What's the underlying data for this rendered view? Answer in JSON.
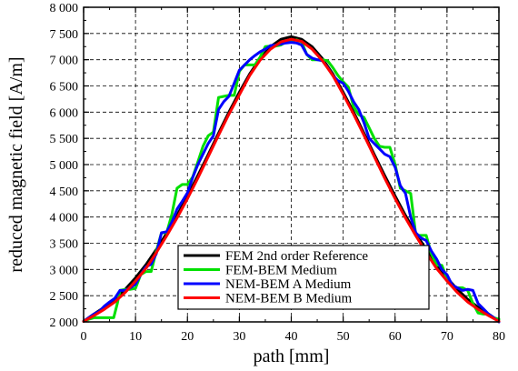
{
  "chart_data": {
    "type": "line",
    "xlabel": "path [mm]",
    "ylabel": "reduced magnetic field [A/m]",
    "xlim": [
      0,
      80
    ],
    "ylim": [
      2000,
      8000
    ],
    "x_ticks": [
      0,
      10,
      20,
      30,
      40,
      50,
      60,
      70,
      80
    ],
    "y_ticks": [
      2000,
      2500,
      3000,
      3500,
      4000,
      4500,
      5000,
      5500,
      6000,
      6500,
      7000,
      7500,
      8000
    ],
    "x_tick_labels": [
      "0",
      "10",
      "20",
      "30",
      "40",
      "50",
      "60",
      "70",
      "80"
    ],
    "y_tick_labels": [
      "2 000",
      "2 500",
      "3 000",
      "3 500",
      "4 000",
      "4 500",
      "5 000",
      "5 500",
      "6 000",
      "6 500",
      "7 000",
      "7 500",
      "8 000"
    ],
    "grid": true,
    "legend_position": "bottom-center",
    "series": [
      {
        "name": "FEM 2nd order Reference",
        "color": "#000000",
        "x": [
          0,
          2,
          4,
          6,
          8,
          10,
          12,
          14,
          16,
          18,
          20,
          22,
          24,
          26,
          28,
          30,
          32,
          34,
          36,
          38,
          40,
          42,
          44,
          46,
          48,
          50,
          52,
          54,
          56,
          58,
          60,
          62,
          64,
          66,
          68,
          70,
          72,
          74,
          76,
          78,
          80
        ],
        "y": [
          2010,
          2150,
          2280,
          2430,
          2620,
          2840,
          3090,
          3380,
          3690,
          4030,
          4400,
          4790,
          5190,
          5600,
          6000,
          6380,
          6730,
          7020,
          7250,
          7390,
          7440,
          7390,
          7250,
          7020,
          6730,
          6380,
          6000,
          5600,
          5190,
          4790,
          4400,
          4030,
          3690,
          3380,
          3090,
          2840,
          2620,
          2430,
          2280,
          2150,
          2010
        ]
      },
      {
        "name": "FEM-BEM Medium",
        "color": "#00e000",
        "x": [
          0,
          1,
          2,
          3,
          4,
          5,
          5.8,
          6.5,
          7,
          8,
          9,
          10,
          11,
          12,
          13,
          14,
          15,
          16,
          17,
          18,
          19,
          20,
          21,
          22,
          23,
          24,
          25,
          26,
          27,
          28,
          29,
          30,
          31,
          32,
          33,
          34,
          35,
          36,
          37,
          38,
          39,
          40,
          41,
          42,
          43,
          44,
          45,
          46,
          47,
          48,
          49,
          50,
          51,
          52,
          53,
          54,
          55,
          56,
          57,
          58,
          59,
          60,
          61,
          62,
          63,
          64,
          65,
          66,
          67,
          68,
          69,
          70,
          71,
          72,
          73,
          74,
          75,
          76,
          77,
          78,
          79,
          80
        ],
        "y": [
          2010,
          2050,
          2080,
          2080,
          2080,
          2080,
          2080,
          2350,
          2600,
          2620,
          2620,
          2640,
          2900,
          2960,
          2960,
          3350,
          3700,
          3700,
          4050,
          4550,
          4620,
          4620,
          4760,
          5050,
          5350,
          5550,
          5620,
          6280,
          6300,
          6320,
          6320,
          6780,
          6900,
          6900,
          6900,
          7050,
          7250,
          7260,
          7260,
          7280,
          7340,
          7360,
          7380,
          7340,
          7100,
          7000,
          7000,
          7000,
          6980,
          6850,
          6700,
          6580,
          6480,
          6100,
          5950,
          5900,
          5700,
          5500,
          5350,
          5330,
          5330,
          5000,
          4550,
          4500,
          4450,
          3650,
          3650,
          3650,
          3300,
          3080,
          3080,
          2820,
          2680,
          2650,
          2650,
          2600,
          2350,
          2170,
          2150,
          2150,
          2080,
          2050
        ]
      },
      {
        "name": "NEM-BEM A Medium",
        "color": "#0000ff",
        "x": [
          0,
          1,
          2,
          3,
          4,
          5,
          6,
          7,
          8,
          9,
          10,
          11,
          12,
          13,
          14,
          15,
          16,
          17,
          18,
          19,
          20,
          21,
          22,
          23,
          24,
          25,
          26,
          27,
          28,
          29,
          30,
          31,
          32,
          33,
          34,
          35,
          36,
          37,
          38,
          39,
          40,
          41,
          42,
          43,
          44,
          45,
          46,
          47,
          48,
          49,
          50,
          51,
          52,
          53,
          54,
          55,
          56,
          57,
          58,
          59,
          60,
          61,
          62,
          63,
          64,
          65,
          66,
          67,
          68,
          69,
          70,
          71,
          72,
          73,
          74,
          75,
          76,
          77,
          78,
          79,
          80
        ],
        "y": [
          2010,
          2080,
          2150,
          2200,
          2300,
          2380,
          2450,
          2600,
          2600,
          2650,
          2720,
          2900,
          3050,
          3100,
          3300,
          3700,
          3720,
          3900,
          4150,
          4300,
          4460,
          4750,
          5000,
          5200,
          5400,
          5550,
          6050,
          6200,
          6300,
          6550,
          6800,
          6900,
          7000,
          7080,
          7150,
          7200,
          7270,
          7280,
          7300,
          7320,
          7330,
          7320,
          7280,
          7100,
          7030,
          7000,
          6980,
          6850,
          6700,
          6600,
          6550,
          6400,
          6200,
          6050,
          5800,
          5500,
          5400,
          5300,
          5200,
          5150,
          4950,
          4600,
          4450,
          4000,
          3700,
          3600,
          3550,
          3350,
          3200,
          3000,
          2900,
          2700,
          2650,
          2600,
          2620,
          2600,
          2350,
          2250,
          2150,
          2080,
          2000
        ]
      },
      {
        "name": "NEM-BEM B Medium",
        "color": "#ff0000",
        "x": [
          0,
          2,
          4,
          6,
          8,
          10,
          12,
          14,
          16,
          18,
          20,
          22,
          24,
          26,
          28,
          30,
          32,
          34,
          36,
          38,
          40,
          42,
          44,
          46,
          48,
          50,
          52,
          54,
          56,
          58,
          60,
          62,
          64,
          66,
          68,
          70,
          72,
          74,
          76,
          78,
          80
        ],
        "y": [
          2010,
          2120,
          2240,
          2380,
          2560,
          2780,
          3020,
          3320,
          3640,
          3980,
          4350,
          4740,
          5150,
          5560,
          5960,
          6330,
          6700,
          6990,
          7200,
          7340,
          7390,
          7350,
          7200,
          6980,
          6700,
          6340,
          5960,
          5560,
          5150,
          4740,
          4350,
          3980,
          3640,
          3320,
          3020,
          2780,
          2560,
          2380,
          2240,
          2120,
          2010
        ]
      }
    ]
  }
}
